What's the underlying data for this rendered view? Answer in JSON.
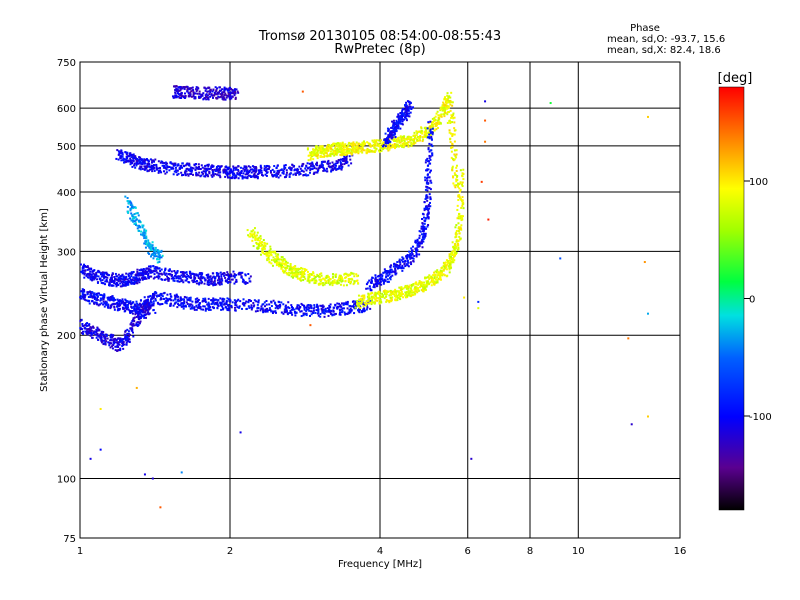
{
  "chart_data": {
    "type": "scatter",
    "title": "Tromsø 20130105 08:54:00-08:55:43",
    "subtitle": "RwPretec (8p)",
    "xlabel": "Frequency [MHz]",
    "ylabel": "Stationary phase Virtual Height [km]",
    "x_scale": "log",
    "y_scale": "log",
    "xlim": [
      1,
      16
    ],
    "ylim": [
      75,
      750
    ],
    "x_ticks": [
      1,
      2,
      4,
      6,
      8,
      10,
      16
    ],
    "x_tick_labels": [
      "1",
      "2",
      "4",
      "6",
      "8",
      "10",
      "16"
    ],
    "y_ticks": [
      75,
      100,
      200,
      300,
      400,
      500,
      600,
      750
    ],
    "y_tick_labels": [
      "75",
      "100",
      "200",
      "300",
      "400",
      "500",
      "600",
      "750"
    ],
    "grid": true,
    "phase_info": {
      "heading": "Phase",
      "o_line": "mean, sd,O: -93.7, 15.6",
      "x_line": "mean, sd,X: 82.4, 18.6"
    },
    "colorbar": {
      "label": "[deg]",
      "range": [
        -180,
        180
      ],
      "ticks": [
        100,
        0,
        -100
      ],
      "tick_labels": [
        "100",
        "0",
        "-100"
      ]
    },
    "series": [
      {
        "traces": [
          {
            "x": [
              1.0,
              1.05,
              1.1,
              1.15,
              1.2,
              1.25,
              1.3,
              1.35,
              1.4,
              1.5,
              1.6,
              1.7,
              1.8,
              1.9,
              2.0,
              2.2,
              2.4,
              2.6,
              2.8,
              3.0,
              3.2,
              3.4,
              3.6,
              3.8
            ],
            "y": [
              245,
              240,
              238,
              235,
              232,
              230,
              228,
              232,
              240,
              238,
              235,
              233,
              232,
              233,
              232,
              231,
              230,
              228,
              226,
              225,
              226,
              228,
              230,
              232
            ],
            "phase": -100
          },
          {
            "x": [
              1.0,
              1.05,
              1.1,
              1.15,
              1.2,
              1.25,
              1.3,
              1.35,
              1.4
            ],
            "y": [
              210,
              205,
              200,
              195,
              190,
              200,
              215,
              225,
              230
            ],
            "phase": -110
          },
          {
            "x": [
              1.0,
              1.05,
              1.1,
              1.15,
              1.2,
              1.25,
              1.3,
              1.35,
              1.4,
              1.5,
              1.6,
              1.7,
              1.8,
              1.9,
              2.0,
              2.2
            ],
            "y": [
              275,
              270,
              265,
              262,
              260,
              262,
              265,
              270,
              272,
              268,
              265,
              263,
              262,
              263,
              265,
              262
            ],
            "phase": -105
          },
          {
            "x": [
              1.2,
              1.25,
              1.3,
              1.35,
              1.4,
              1.5,
              1.6,
              1.7,
              1.8,
              1.9,
              2.0,
              2.1,
              2.2,
              2.3,
              2.5,
              2.7,
              2.9,
              3.1,
              3.3,
              3.5
            ],
            "y": [
              480,
              470,
              462,
              458,
              455,
              450,
              447,
              445,
              443,
              442,
              441,
              440,
              440,
              441,
              442,
              444,
              447,
              452,
              458,
              465
            ],
            "phase": -105
          },
          {
            "x": [
              1.25,
              1.3,
              1.35,
              1.4,
              1.45
            ],
            "y": [
              380,
              350,
              320,
              300,
              290
            ],
            "phase": -30
          },
          {
            "x": [
              1.55,
              1.6,
              1.7,
              1.8,
              1.9,
              2.0,
              2.05
            ],
            "y": [
              650,
              648,
              646,
              645,
              645,
              644,
              646
            ],
            "phase": -120
          },
          {
            "x": [
              2.2,
              2.3,
              2.4,
              2.5,
              2.6,
              2.7,
              2.8,
              3.0,
              3.2,
              3.4,
              3.6
            ],
            "y": [
              330,
              310,
              295,
              285,
              278,
              272,
              268,
              263,
              262,
              262,
              263
            ],
            "phase": 80
          },
          {
            "x": [
              2.9,
              3.0,
              3.1,
              3.2,
              3.3,
              3.4,
              3.5,
              3.6,
              3.8,
              4.0,
              4.2,
              4.4,
              4.6,
              4.8,
              5.0,
              5.2,
              5.4,
              5.5,
              5.6,
              5.7
            ],
            "y": [
              480,
              485,
              488,
              490,
              492,
              493,
              494,
              495,
              497,
              500,
              505,
              510,
              515,
              525,
              540,
              560,
              600,
              630,
              520,
              400
            ],
            "phase": 90
          },
          {
            "x": [
              3.6,
              3.8,
              4.0,
              4.2,
              4.4,
              4.6,
              4.8,
              5.0,
              5.2,
              5.4,
              5.6,
              5.7,
              5.8,
              5.8
            ],
            "y": [
              235,
              238,
              240,
              242,
              245,
              248,
              252,
              258,
              265,
              275,
              290,
              310,
              360,
              450
            ],
            "phase": 85
          },
          {
            "x": [
              3.8,
              4.0,
              4.2,
              4.4,
              4.6,
              4.8,
              4.9,
              5.0,
              5.0,
              5.05
            ],
            "y": [
              255,
              262,
              270,
              280,
              290,
              310,
              340,
              380,
              450,
              560
            ],
            "phase": -100
          },
          {
            "x": [
              4.1,
              4.2,
              4.3,
              4.4,
              4.5,
              4.6
            ],
            "y": [
              510,
              530,
              550,
              570,
              590,
              610
            ],
            "phase": -100
          }
        ]
      }
    ],
    "scatter_points": [
      {
        "x": 6.5,
        "y": 620,
        "phase": -110
      },
      {
        "x": 6.5,
        "y": 565,
        "phase": 150
      },
      {
        "x": 6.5,
        "y": 510,
        "phase": 140
      },
      {
        "x": 6.4,
        "y": 420,
        "phase": 160
      },
      {
        "x": 6.6,
        "y": 350,
        "phase": 170
      },
      {
        "x": 8.8,
        "y": 615,
        "phase": 20
      },
      {
        "x": 9.2,
        "y": 290,
        "phase": -60
      },
      {
        "x": 13.8,
        "y": 575,
        "phase": 110
      },
      {
        "x": 13.6,
        "y": 285,
        "phase": 130
      },
      {
        "x": 13.8,
        "y": 222,
        "phase": -30
      },
      {
        "x": 12.6,
        "y": 197,
        "phase": 140
      },
      {
        "x": 12.8,
        "y": 130,
        "phase": -120
      },
      {
        "x": 13.8,
        "y": 135,
        "phase": 110
      },
      {
        "x": 6.1,
        "y": 110,
        "phase": -120
      },
      {
        "x": 6.3,
        "y": 235,
        "phase": -80
      },
      {
        "x": 1.05,
        "y": 110,
        "phase": -110
      },
      {
        "x": 1.1,
        "y": 115,
        "phase": -100
      },
      {
        "x": 1.35,
        "y": 102,
        "phase": -110
      },
      {
        "x": 1.4,
        "y": 100,
        "phase": -115
      },
      {
        "x": 1.6,
        "y": 103,
        "phase": -40
      },
      {
        "x": 1.45,
        "y": 87,
        "phase": 150
      },
      {
        "x": 2.1,
        "y": 125,
        "phase": -110
      },
      {
        "x": 1.3,
        "y": 155,
        "phase": 120
      },
      {
        "x": 1.1,
        "y": 140,
        "phase": 100
      },
      {
        "x": 2.9,
        "y": 210,
        "phase": 150
      },
      {
        "x": 5.9,
        "y": 240,
        "phase": 100
      },
      {
        "x": 6.3,
        "y": 228,
        "phase": 80
      },
      {
        "x": 2.8,
        "y": 650,
        "phase": 150
      }
    ]
  }
}
